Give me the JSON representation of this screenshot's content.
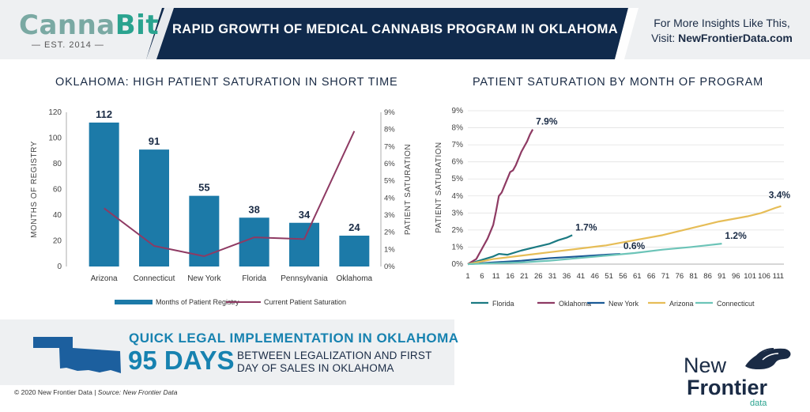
{
  "header": {
    "logo_part1": "Canna",
    "logo_part2": "Bit",
    "logo_est": "— EST. 2014 —",
    "banner_title": "RAPID GROWTH OF MEDICAL CANNABIS PROGRAM IN OKLAHOMA",
    "insights_line1": "For More Insights Like This,",
    "insights_line2_prefix": "Visit: ",
    "insights_link": "NewFrontierData.com",
    "banner_color": "#102a4c",
    "accent_color": "#2aa38f"
  },
  "chart_data": [
    {
      "type": "bar",
      "title": "OKLAHOMA: HIGH PATIENT SATURATION IN SHORT TIME",
      "categories": [
        "Arizona",
        "Connecticut",
        "New York",
        "Florida",
        "Pennsylvania",
        "Oklahoma"
      ],
      "series": [
        {
          "name": "Months of Patient Registry",
          "values": [
            112,
            91,
            55,
            38,
            34,
            24
          ],
          "color": "#1c7aa8",
          "axis": "left"
        },
        {
          "name": "Current Patient Saturation",
          "type": "line",
          "values": [
            3.4,
            1.2,
            0.6,
            1.7,
            1.6,
            7.9
          ],
          "color": "#8e3a63",
          "axis": "right"
        }
      ],
      "ylabel": "MONTHS OF REGISTRY",
      "ylim": [
        0,
        120
      ],
      "yticks": [
        "0",
        "20",
        "40",
        "60",
        "80",
        "100",
        "120"
      ],
      "y2label": "PATIENT SATURATION",
      "y2lim": [
        0,
        9
      ],
      "y2ticks": [
        "0%",
        "1%",
        "2%",
        "3%",
        "4%",
        "5%",
        "6%",
        "7%",
        "8%",
        "9%"
      ],
      "legend": "bottom"
    },
    {
      "type": "line",
      "title": "PATIENT SATURATION BY MONTH OF PROGRAM",
      "ylabel": "PATIENT SATURATION",
      "ylim": [
        0,
        9
      ],
      "yticks": [
        "0%",
        "1%",
        "2%",
        "3%",
        "4%",
        "5%",
        "6%",
        "7%",
        "8%",
        "9%"
      ],
      "xlim": [
        1,
        113
      ],
      "xticks": [
        "1",
        "6",
        "11",
        "16",
        "21",
        "26",
        "31",
        "36",
        "41",
        "46",
        "51",
        "56",
        "61",
        "66",
        "71",
        "76",
        "81",
        "86",
        "91",
        "96",
        "101",
        "106",
        "111"
      ],
      "grid": true,
      "legend": "bottom",
      "series": [
        {
          "name": "Florida",
          "color": "#1b7a82",
          "end_label": "1.7%",
          "x": [
            1,
            5,
            10,
            12,
            15,
            20,
            25,
            30,
            33,
            36,
            38
          ],
          "y": [
            0.0,
            0.2,
            0.45,
            0.6,
            0.55,
            0.8,
            1.0,
            1.2,
            1.4,
            1.55,
            1.7
          ]
        },
        {
          "name": "Oklahoma",
          "color": "#8e3a63",
          "end_label": "7.9%",
          "x": [
            1,
            4,
            6,
            8,
            10,
            11,
            12,
            13,
            14,
            15,
            16,
            17,
            18,
            19,
            20,
            21,
            22,
            23,
            24
          ],
          "y": [
            0.0,
            0.3,
            0.9,
            1.5,
            2.3,
            3.1,
            4.0,
            4.2,
            4.6,
            5.0,
            5.4,
            5.5,
            5.8,
            6.2,
            6.6,
            6.9,
            7.2,
            7.6,
            7.9
          ]
        },
        {
          "name": "New York",
          "color": "#1b5a96",
          "end_label": "0.6%",
          "x": [
            1,
            10,
            20,
            30,
            40,
            50,
            55
          ],
          "y": [
            0.0,
            0.1,
            0.2,
            0.35,
            0.45,
            0.55,
            0.6
          ]
        },
        {
          "name": "Arizona",
          "color": "#e6bd57",
          "end_label": "3.4%",
          "x": [
            1,
            10,
            20,
            30,
            40,
            50,
            60,
            70,
            80,
            90,
            100,
            105,
            110,
            112
          ],
          "y": [
            0.0,
            0.3,
            0.5,
            0.7,
            0.9,
            1.1,
            1.4,
            1.7,
            2.1,
            2.5,
            2.8,
            3.0,
            3.3,
            3.4
          ]
        },
        {
          "name": "Connecticut",
          "color": "#6cc4b8",
          "end_label": "1.2%",
          "x": [
            1,
            10,
            20,
            30,
            40,
            50,
            60,
            70,
            80,
            91
          ],
          "y": [
            0.0,
            0.05,
            0.1,
            0.2,
            0.35,
            0.5,
            0.65,
            0.85,
            1.0,
            1.2
          ]
        }
      ]
    }
  ],
  "quick": {
    "headline": "QUICK LEGAL IMPLEMENTATION IN OKLAHOMA",
    "days": "95 DAYS",
    "desc_line1": "BETWEEN LEGALIZATION AND FIRST",
    "desc_line2": "DAY OF SALES IN OKLAHOMA",
    "map_icon": "oklahoma-map-icon"
  },
  "footer": {
    "copyright": "© 2020  New Frontier Data | ",
    "source": "Source: New Frontier Data",
    "brand_new": "New",
    "brand_frontier": "Frontier",
    "brand_data": "data",
    "brand_icon": "horse-head-icon"
  }
}
